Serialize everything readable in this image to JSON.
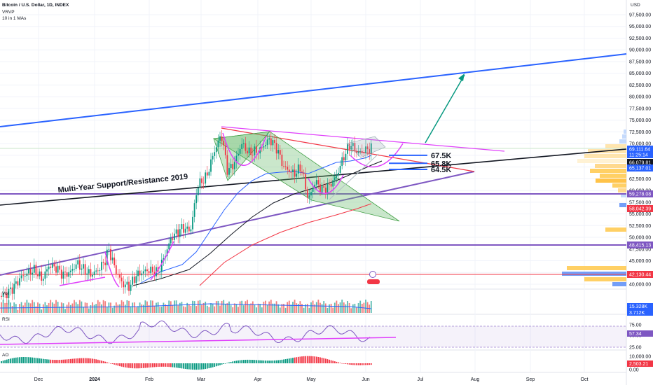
{
  "header": {
    "symbol": "Bitcoin / U.S. Dollar, 1D, INDEX",
    "indicator1": "VRVP",
    "indicator2": "10 in 1 MAs",
    "currency": "USD"
  },
  "chart_data": {
    "type": "candlestick",
    "y_ticks": [
      97500,
      95000,
      92500,
      90000,
      87500,
      85000,
      82500,
      80000,
      77500,
      75000,
      72500,
      70000,
      67500,
      65000,
      62500,
      60000,
      57500,
      55000,
      52500,
      50000,
      47500,
      45000,
      42500,
      40000
    ],
    "y_tick_labels": [
      "97,500.00",
      "95,000.00",
      "92,500.00",
      "90,000.00",
      "87,500.00",
      "85,000.00",
      "82,500.00",
      "80,000.00",
      "77,500.00",
      "75,000.00",
      "72,500.00",
      "70,000.00",
      "67,500.00",
      "65,000.00",
      "62,500.00",
      "60,000.00",
      "57,500.00",
      "55,000.00",
      "52,500.00",
      "50,000.00",
      "47,500.00",
      "45,000.00",
      "42,500.00",
      "40,000.00"
    ],
    "x_labels": [
      "Dec",
      "2024",
      "Feb",
      "Mar",
      "Apr",
      "May",
      "Jun",
      "Jul",
      "Aug",
      "Sep",
      "Oct"
    ],
    "price_tags": [
      {
        "value": "69,111.64",
        "color": "#2962ff"
      },
      {
        "value": "11:25:14",
        "color": "#2962ff"
      },
      {
        "value": "66,079.81",
        "color": "#131722"
      },
      {
        "value": "65,137.01",
        "color": "#2962ff"
      },
      {
        "value": "59,278.08",
        "color": "#7e57c2"
      },
      {
        "value": "58,042.39",
        "color": "#f23645"
      },
      {
        "value": "48,415.13",
        "color": "#7e57c2"
      },
      {
        "value": "42,130.44",
        "color": "#f23645"
      }
    ],
    "levels": [
      {
        "label": "67.5K",
        "value": 67500
      },
      {
        "label": "65.8K",
        "value": 65800
      },
      {
        "label": "64.5K",
        "value": 64500
      }
    ],
    "annotation": "Multi-Year Support/Resistance 2019",
    "volume": {
      "label": "Vol",
      "tags": [
        {
          "value": "15.328K",
          "color": "#2962ff"
        },
        {
          "value": "3.712K",
          "color": "#2962ff"
        }
      ]
    },
    "rsi": {
      "label": "RSI",
      "ticks": [
        "75.00",
        "50.00",
        "25.00"
      ],
      "tag": {
        "value": "57.34",
        "color": "#7e57c2"
      }
    },
    "ao": {
      "label": "AO",
      "ticks": [
        "10,000.00",
        "0.00"
      ],
      "tag": {
        "value": "2,503.21",
        "color": "#f23645"
      }
    }
  }
}
